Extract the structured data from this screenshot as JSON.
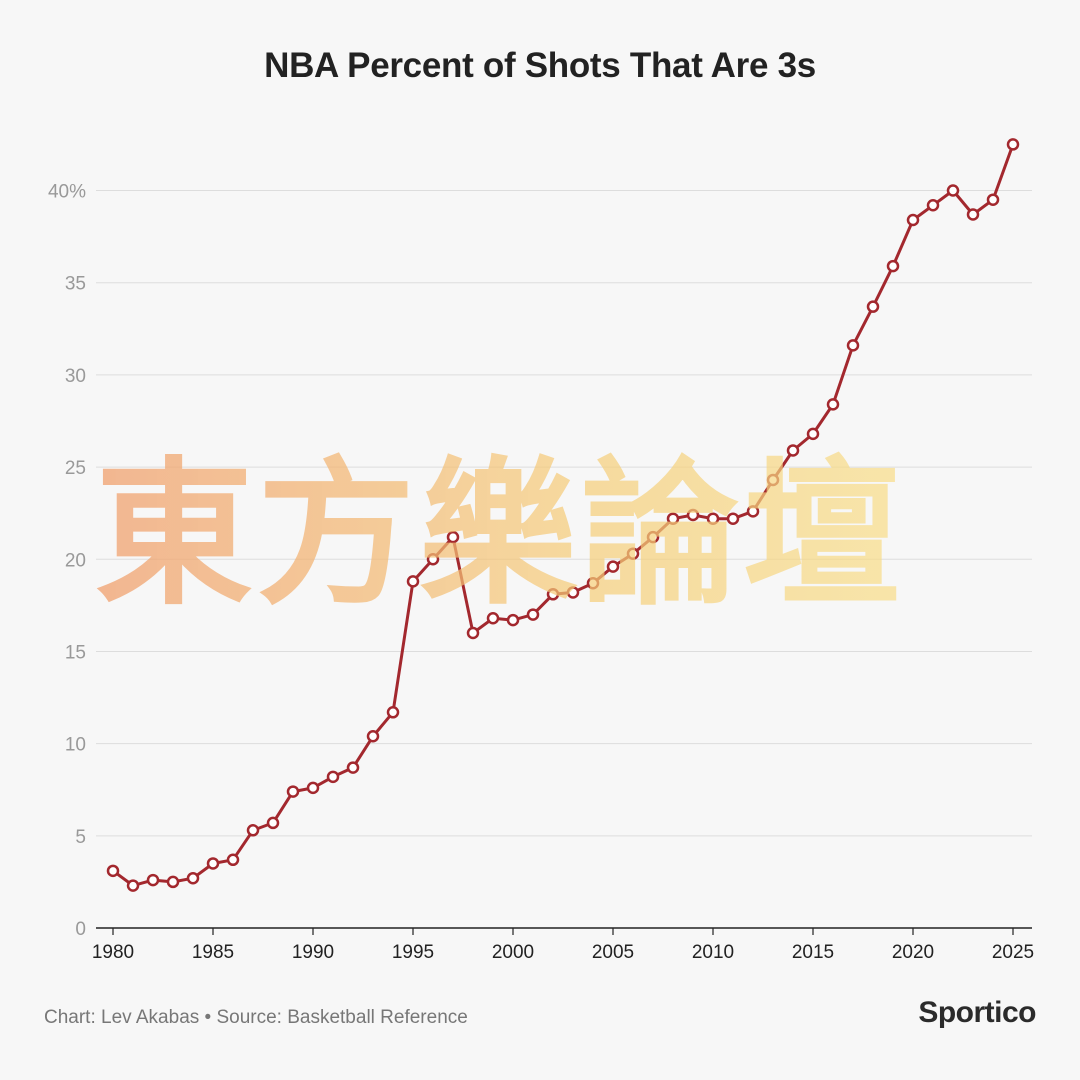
{
  "title": "NBA Percent of Shots That Are 3s",
  "watermark_text": "東方樂論壇",
  "footer": {
    "credit": "Chart: Lev Akabas • Source: Basketball Reference",
    "logo": "Sportico"
  },
  "colors": {
    "line": "#a3282e",
    "marker_fill": "#ffffff",
    "grid": "#dddddd",
    "axis": "#222222",
    "background": "#f7f7f7"
  },
  "chart_data": {
    "type": "line",
    "title": "NBA Percent of Shots That Are 3s",
    "xlabel": "",
    "ylabel": "",
    "grid": true,
    "xlim": [
      1980,
      2025
    ],
    "ylim": [
      0,
      45
    ],
    "x_ticks": [
      "1980",
      "1985",
      "1990",
      "1995",
      "2000",
      "2005",
      "2010",
      "2015",
      "2020",
      "2025"
    ],
    "y_ticks": [
      "0",
      "5",
      "10",
      "15",
      "20",
      "25",
      "30",
      "35",
      "40%"
    ],
    "series": [
      {
        "x": [
          1980,
          1981,
          1982,
          1983,
          1984,
          1985,
          1986,
          1987,
          1988,
          1989,
          1990,
          1991,
          1992,
          1993,
          1994,
          1995,
          1996,
          1997,
          1998,
          1999,
          2000,
          2001,
          2002,
          2003,
          2004,
          2005,
          2006,
          2007,
          2008,
          2009,
          2010,
          2011,
          2012,
          2013,
          2014,
          2015,
          2016,
          2017,
          2018,
          2019,
          2020,
          2021,
          2022,
          2023,
          2024,
          2025
        ],
        "values": [
          3.1,
          2.3,
          2.6,
          2.5,
          2.7,
          3.5,
          3.7,
          5.3,
          5.7,
          7.4,
          7.6,
          8.2,
          8.7,
          10.4,
          11.7,
          18.8,
          20.0,
          21.2,
          16.0,
          16.8,
          16.7,
          17.0,
          18.1,
          18.2,
          18.7,
          19.6,
          20.3,
          21.2,
          22.2,
          22.4,
          22.2,
          22.2,
          22.6,
          24.3,
          25.9,
          26.8,
          28.4,
          31.6,
          33.7,
          35.9,
          38.4,
          39.2,
          40.0,
          38.7,
          39.5,
          42.5
        ]
      }
    ]
  }
}
